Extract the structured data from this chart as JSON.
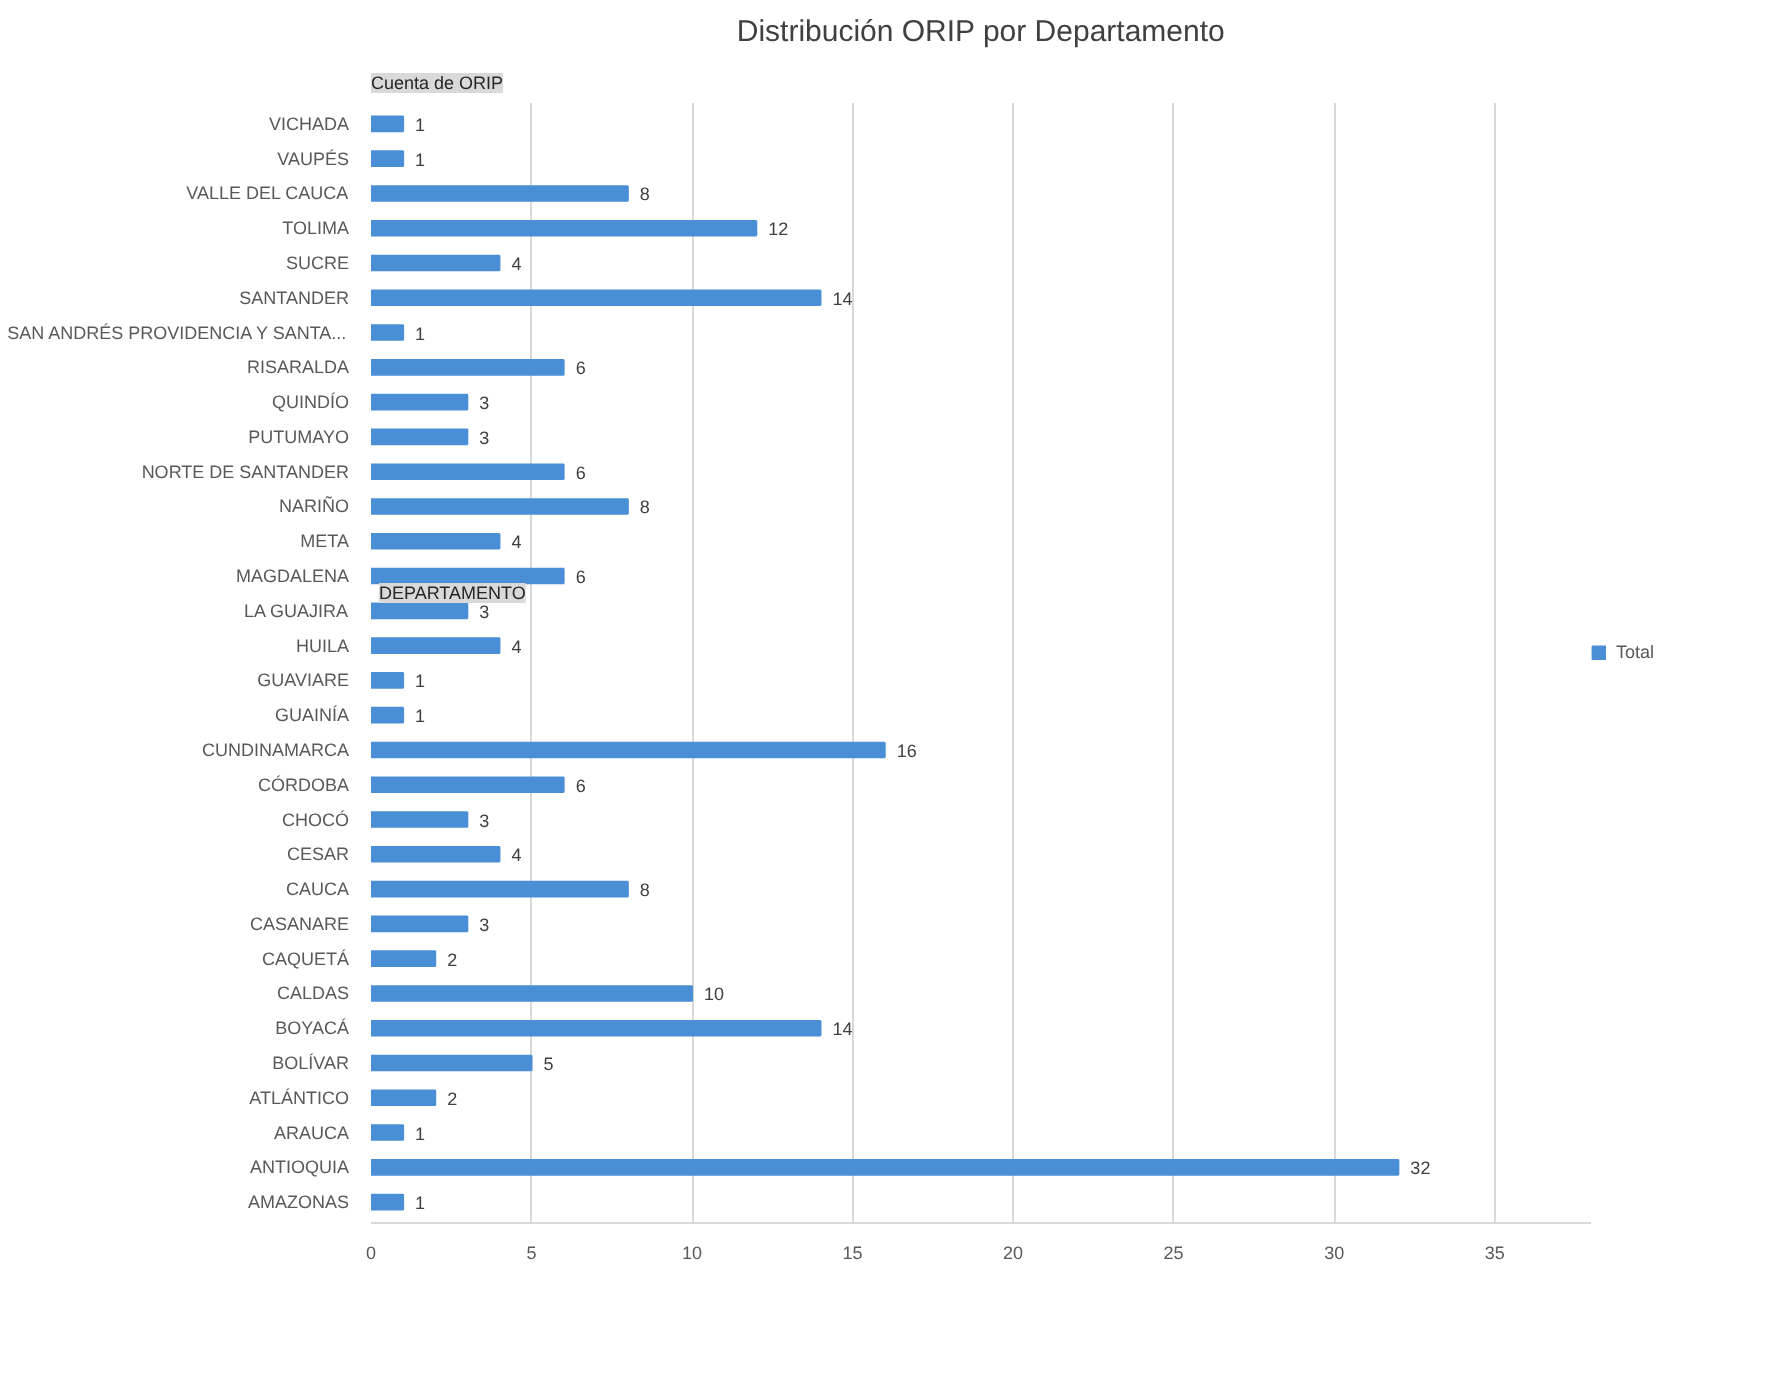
{
  "chart_data": {
    "type": "bar",
    "orientation": "horizontal",
    "title": "Distribución ORIP por Departamento",
    "categories": [
      "VICHADA",
      "VAUPÉS",
      "VALLE DEL CAUCA",
      "TOLIMA",
      "SUCRE",
      "SANTANDER",
      "SAN ANDRÉS PROVIDENCIA Y SANTA...",
      "RISARALDA",
      "QUINDÍO",
      "PUTUMAYO",
      "NORTE DE SANTANDER",
      "NARIÑO",
      "META",
      "MAGDALENA",
      "LA GUAJIRA",
      "HUILA",
      "GUAVIARE",
      "GUAINÍA",
      "CUNDINAMARCA",
      "CÓRDOBA",
      "CHOCÓ",
      "CESAR",
      "CAUCA",
      "CASANARE",
      "CAQUETÁ",
      "CALDAS",
      "BOYACÁ",
      "BOLÍVAR",
      "ATLÁNTICO",
      "ARAUCA",
      "ANTIOQUIA",
      "AMAZONAS"
    ],
    "series": [
      {
        "name": "Total",
        "color": "#4a8fd6",
        "values": [
          1,
          1,
          8,
          12,
          4,
          14,
          1,
          6,
          3,
          3,
          6,
          8,
          4,
          6,
          3,
          4,
          1,
          1,
          16,
          6,
          3,
          4,
          8,
          3,
          2,
          10,
          14,
          5,
          2,
          1,
          32,
          1
        ]
      }
    ],
    "xlim": [
      0,
      38
    ],
    "xticks": [
      0,
      5,
      10,
      15,
      20,
      25,
      30,
      35
    ],
    "grid": "x",
    "legend": "right",
    "data_labels": true,
    "annotations": [
      "Cuenta de ORIP",
      "DEPARTAMENTO"
    ]
  }
}
